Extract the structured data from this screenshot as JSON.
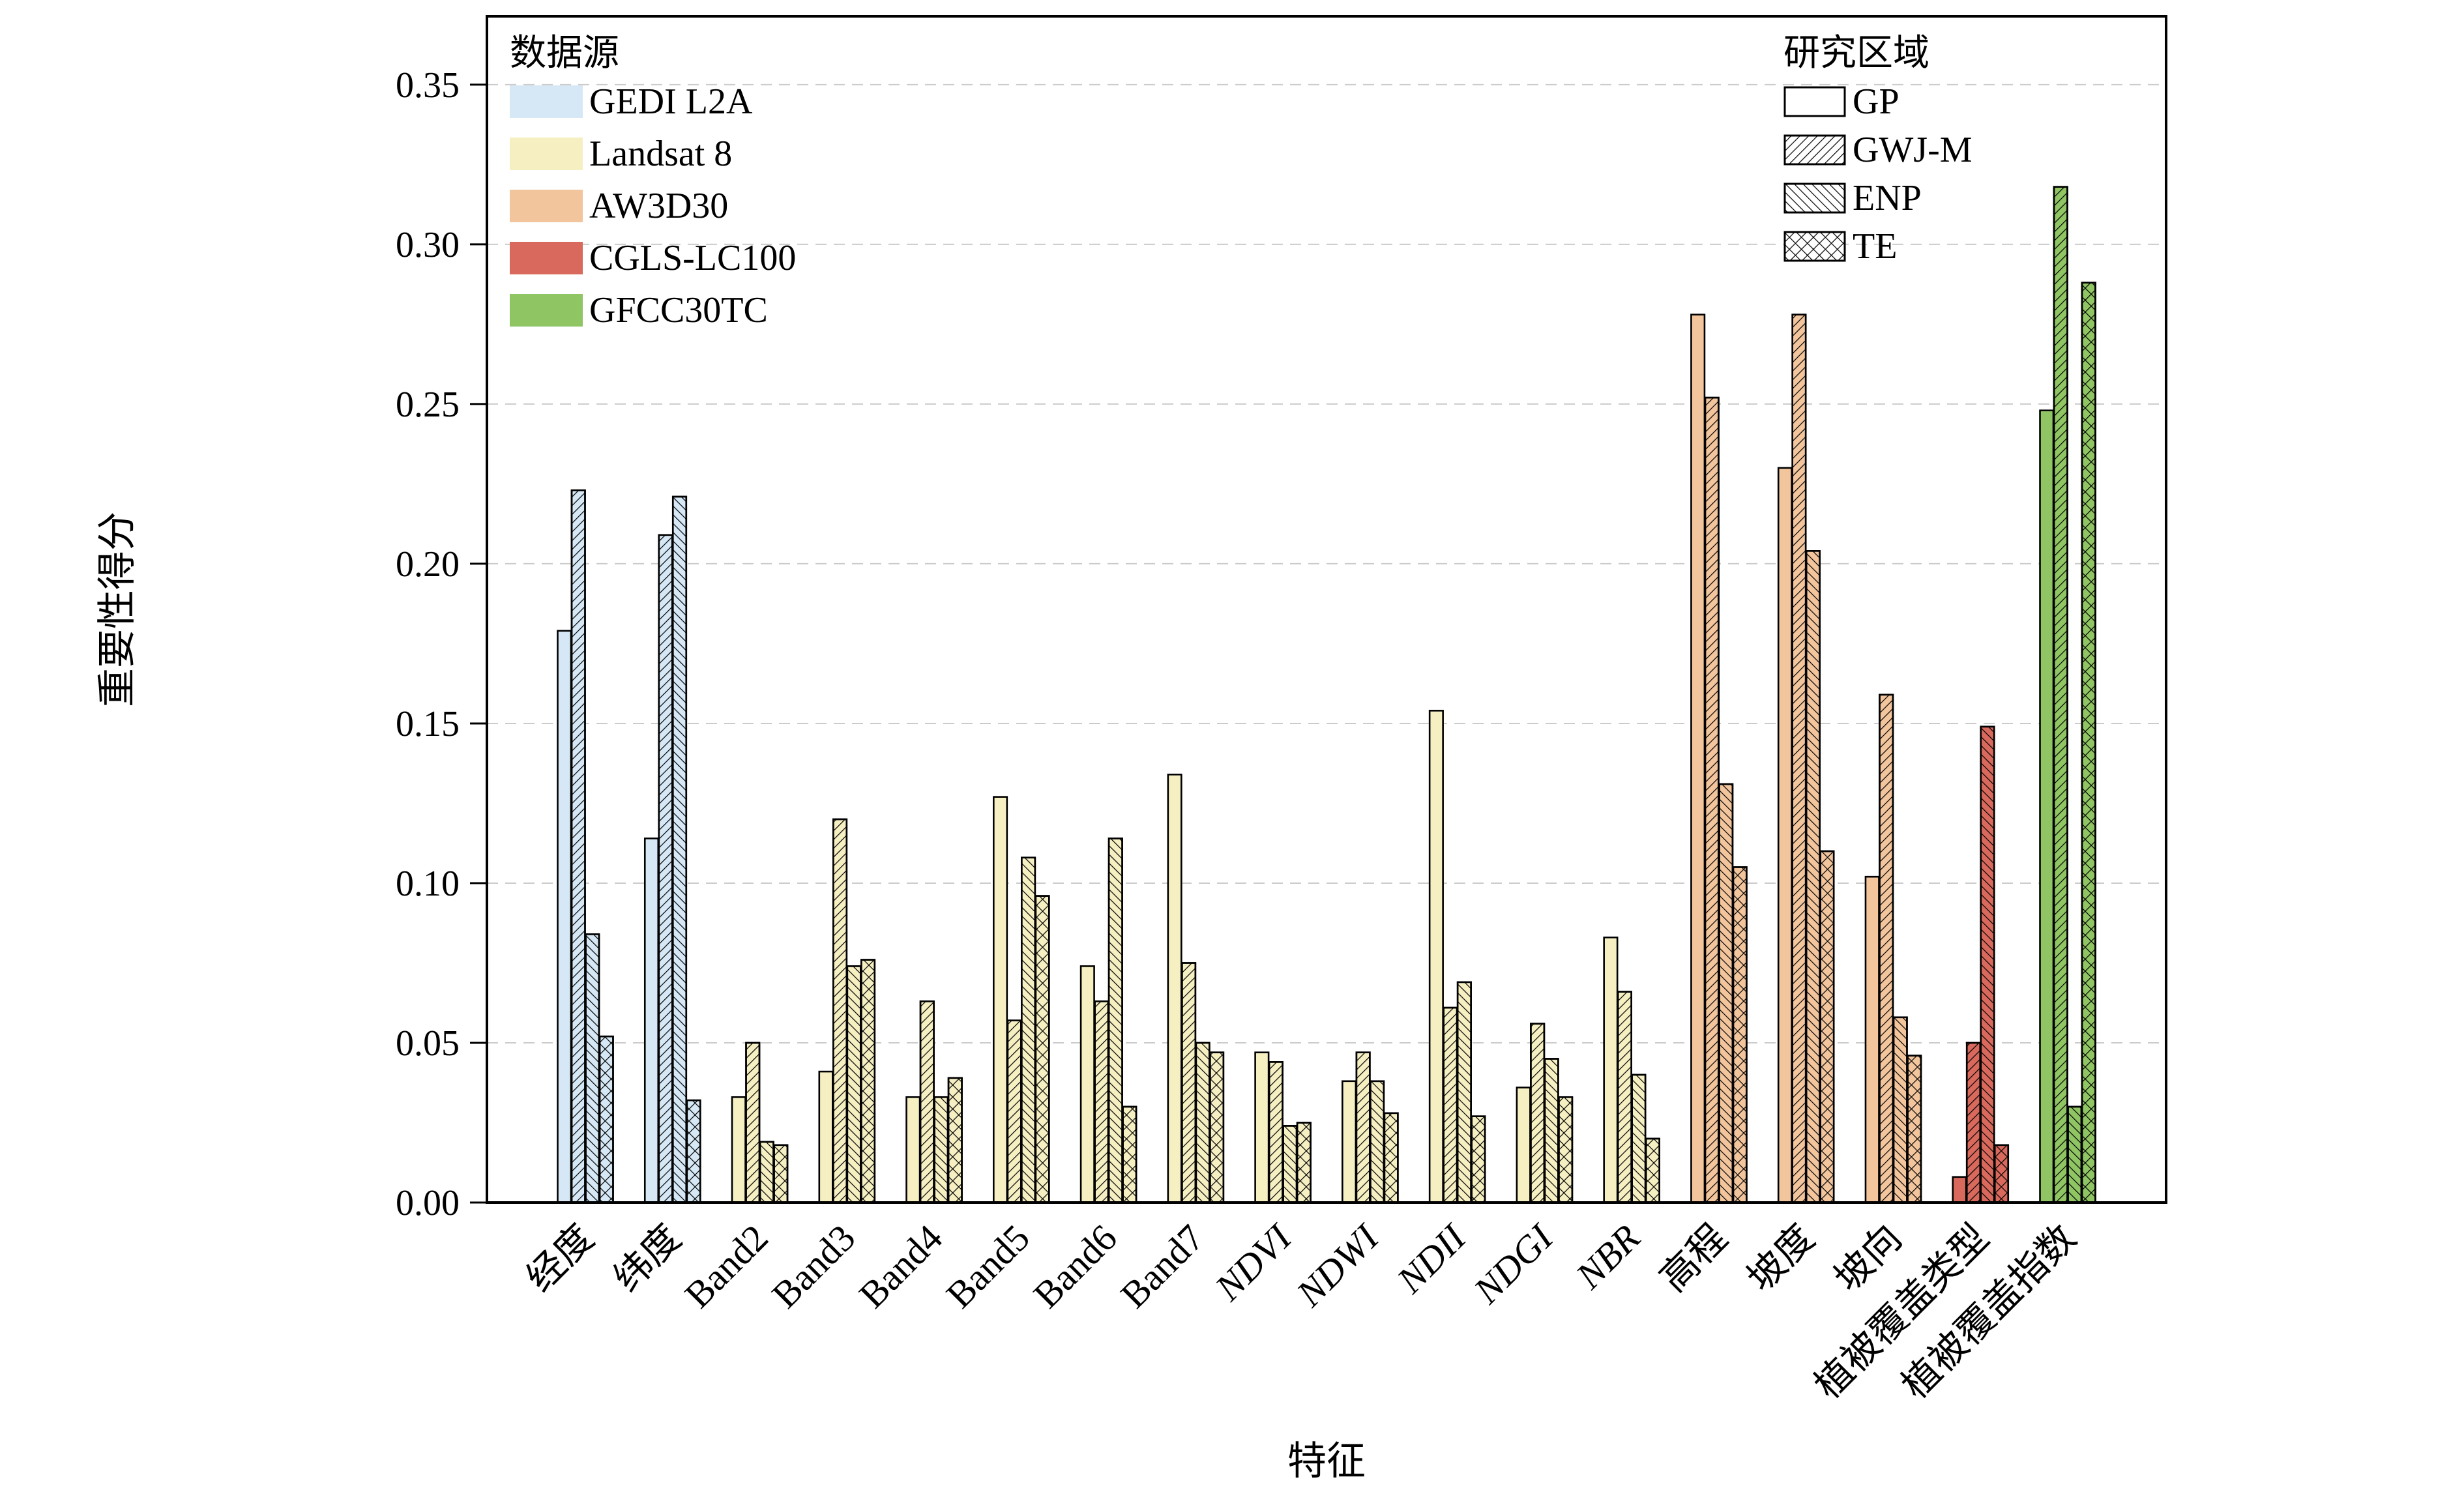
{
  "figure": {
    "x_axis_title": "特征",
    "y_axis_title": "重要性得分"
  },
  "legend_datasource": {
    "title": "数据源",
    "items": [
      {
        "label": "GEDI L2A",
        "color": "#d6e8f5"
      },
      {
        "label": "Landsat 8",
        "color": "#f5efc2"
      },
      {
        "label": "AW3D30",
        "color": "#f3c59d"
      },
      {
        "label": "CGLS-LC100",
        "color": "#d8695c"
      },
      {
        "label": "GFCC30TC",
        "color": "#90c564"
      }
    ]
  },
  "legend_region": {
    "title": "研究区域",
    "items": [
      {
        "label": "GP",
        "hatch": "none"
      },
      {
        "label": "GWJ-M",
        "hatch": "diag-up"
      },
      {
        "label": "ENP",
        "hatch": "diag-down"
      },
      {
        "label": "TE",
        "hatch": "cross"
      }
    ]
  },
  "chart_data": {
    "type": "bar",
    "title": "",
    "xlabel": "特征",
    "ylabel": "重要性得分",
    "ylim": [
      0,
      0.3714
    ],
    "yticks": [
      0.0,
      0.05,
      0.1,
      0.15,
      0.2,
      0.25,
      0.3,
      0.35
    ],
    "grid": "horizontal dashed",
    "legend_position": "inside top-left (数据源) and inside top-right (研究区域)",
    "categories": [
      "经度",
      "纬度",
      "Band2",
      "Band3",
      "Band4",
      "Band5",
      "Band6",
      "Band7",
      "NDVI",
      "NDWI",
      "NDII",
      "NDGI",
      "NBR",
      "高程",
      "坡度",
      "坡向",
      "植被覆盖类型",
      "植被覆盖指数"
    ],
    "italic_tick_labels": [
      "NDVI",
      "NDWI",
      "NDII",
      "NDGI",
      "NBR"
    ],
    "category_sources": [
      "GEDI L2A",
      "GEDI L2A",
      "Landsat 8",
      "Landsat 8",
      "Landsat 8",
      "Landsat 8",
      "Landsat 8",
      "Landsat 8",
      "Landsat 8",
      "Landsat 8",
      "Landsat 8",
      "Landsat 8",
      "Landsat 8",
      "AW3D30",
      "AW3D30",
      "AW3D30",
      "CGLS-LC100",
      "GFCC30TC"
    ],
    "source_colors": {
      "GEDI L2A": "#d6e8f5",
      "Landsat 8": "#f5efc2",
      "AW3D30": "#f3c59d",
      "CGLS-LC100": "#d8695c",
      "GFCC30TC": "#90c564"
    },
    "series": [
      {
        "name": "GP",
        "hatch": "none",
        "values": [
          0.179,
          0.114,
          0.033,
          0.041,
          0.033,
          0.127,
          0.074,
          0.134,
          0.047,
          0.038,
          0.154,
          0.036,
          0.083,
          0.278,
          0.23,
          0.102,
          0.008,
          0.248
        ]
      },
      {
        "name": "GWJ-M",
        "hatch": "diag-up",
        "values": [
          0.223,
          0.209,
          0.05,
          0.12,
          0.063,
          0.057,
          0.063,
          0.075,
          0.044,
          0.047,
          0.061,
          0.056,
          0.066,
          0.252,
          0.278,
          0.159,
          0.05,
          0.318
        ]
      },
      {
        "name": "ENP",
        "hatch": "diag-down",
        "values": [
          0.084,
          0.221,
          0.019,
          0.074,
          0.033,
          0.108,
          0.114,
          0.05,
          0.024,
          0.038,
          0.069,
          0.045,
          0.04,
          0.131,
          0.204,
          0.058,
          0.149,
          0.03
        ]
      },
      {
        "name": "TE",
        "hatch": "cross",
        "values": [
          0.052,
          0.032,
          0.018,
          0.076,
          0.039,
          0.096,
          0.03,
          0.047,
          0.025,
          0.028,
          0.027,
          0.033,
          0.02,
          0.105,
          0.11,
          0.046,
          0.018,
          0.288
        ]
      }
    ]
  }
}
